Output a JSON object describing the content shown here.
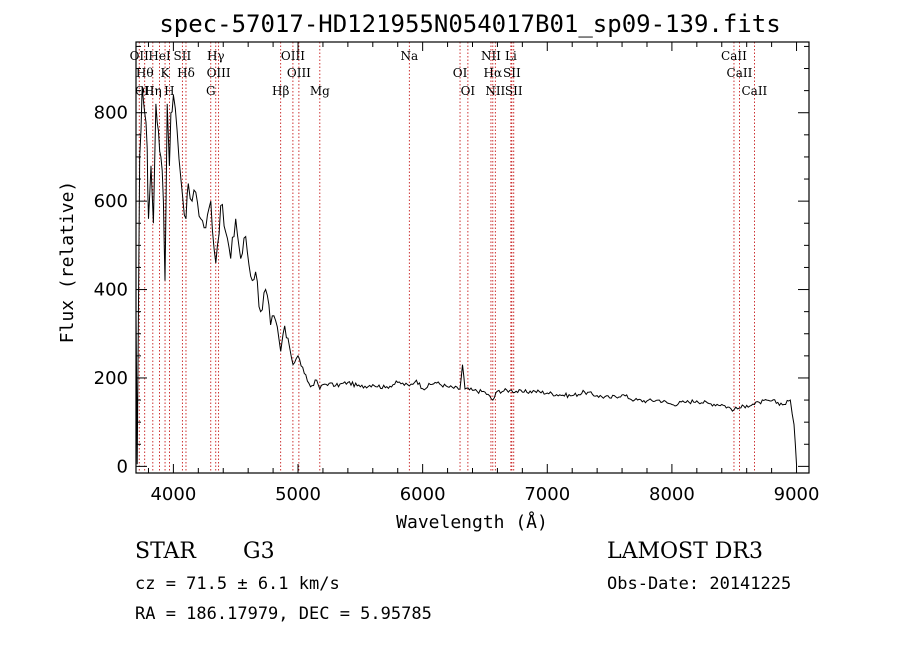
{
  "title": "spec-57017-HD121955N054017B01_sp09-139.fits",
  "chart_data": {
    "type": "line",
    "xlabel": "Wavelength (Å)",
    "ylabel": "Flux (relative)",
    "xlim": [
      3700,
      9100
    ],
    "ylim": [
      -15,
      960
    ],
    "x_ticks": [
      4000,
      5000,
      6000,
      7000,
      8000,
      9000
    ],
    "y_ticks": [
      0,
      200,
      400,
      600,
      800
    ],
    "grid": false,
    "series": [
      {
        "x": [
          3700,
          3710,
          3730,
          3750,
          3770,
          3790,
          3800,
          3820,
          3840,
          3860,
          3880,
          3900,
          3920,
          3933,
          3950,
          3968,
          3980,
          4000,
          4030,
          4060,
          4101,
          4120,
          4150,
          4180,
          4220,
          4260,
          4300,
          4340,
          4380,
          4420,
          4460,
          4500,
          4540,
          4580,
          4620,
          4660,
          4700,
          4740,
          4780,
          4820,
          4861,
          4880,
          4920,
          4960,
          5000,
          5050,
          5100,
          5150,
          5175,
          5200,
          5250,
          5300,
          5400,
          5500,
          5600,
          5700,
          5800,
          5893,
          5950,
          6000,
          6100,
          6200,
          6300,
          6320,
          6340,
          6400,
          6500,
          6563,
          6600,
          6700,
          6800,
          6900,
          7000,
          7100,
          7200,
          7300,
          7400,
          7500,
          7600,
          7700,
          7800,
          7900,
          8000,
          8100,
          8200,
          8300,
          8400,
          8498,
          8542,
          8600,
          8662,
          8700,
          8800,
          8900,
          8950,
          8980,
          9000
        ],
        "y": [
          340,
          5,
          700,
          860,
          800,
          720,
          560,
          680,
          550,
          820,
          760,
          700,
          600,
          420,
          820,
          680,
          800,
          840,
          760,
          650,
          560,
          640,
          600,
          620,
          560,
          540,
          600,
          460,
          590,
          530,
          470,
          560,
          470,
          520,
          430,
          440,
          350,
          400,
          320,
          330,
          260,
          300,
          290,
          230,
          250,
          210,
          180,
          195,
          175,
          185,
          188,
          182,
          190,
          180,
          185,
          178,
          190,
          182,
          195,
          176,
          190,
          180,
          175,
          230,
          175,
          172,
          168,
          150,
          170,
          172,
          168,
          170,
          166,
          162,
          160,
          168,
          160,
          155,
          162,
          150,
          148,
          150,
          140,
          145,
          148,
          142,
          140,
          128,
          132,
          138,
          140,
          145,
          148,
          140,
          150,
          95,
          5
        ]
      }
    ],
    "lines": [
      {
        "x": 3726,
        "labels": [
          "OII"
        ]
      },
      {
        "x": 3770,
        "labels": [
          "Hθ",
          "OII"
        ]
      },
      {
        "x": 3835,
        "labels": [
          "Hη"
        ]
      },
      {
        "x": 3889,
        "labels": [
          "HeI"
        ]
      },
      {
        "x": 3933,
        "labels": [
          "K"
        ]
      },
      {
        "x": 3968,
        "labels": [
          "H"
        ]
      },
      {
        "x": 4072,
        "labels": [
          "SII"
        ]
      },
      {
        "x": 4101,
        "labels": [
          "Hδ"
        ]
      },
      {
        "x": 4300,
        "labels": [
          "G"
        ]
      },
      {
        "x": 4340,
        "labels": [
          "Hγ"
        ]
      },
      {
        "x": 4363,
        "labels": [
          "OIII"
        ]
      },
      {
        "x": 4861,
        "labels": [
          "Hβ"
        ]
      },
      {
        "x": 4959,
        "labels": [
          "OIII"
        ]
      },
      {
        "x": 5007,
        "labels": [
          "OIII"
        ]
      },
      {
        "x": 5175,
        "labels": [
          "Mg"
        ]
      },
      {
        "x": 5893,
        "labels": [
          "Na"
        ]
      },
      {
        "x": 6300,
        "labels": [
          "OI"
        ]
      },
      {
        "x": 6363,
        "labels": [
          "OI"
        ]
      },
      {
        "x": 6548,
        "labels": [
          "NII"
        ]
      },
      {
        "x": 6563,
        "labels": [
          "Hα"
        ]
      },
      {
        "x": 6583,
        "labels": [
          "NII"
        ]
      },
      {
        "x": 6708,
        "labels": [
          "Li"
        ]
      },
      {
        "x": 6716,
        "labels": [
          "SII"
        ]
      },
      {
        "x": 6731,
        "labels": [
          "SII"
        ]
      },
      {
        "x": 8498,
        "labels": [
          "CaII"
        ]
      },
      {
        "x": 8542,
        "labels": [
          "CaII"
        ]
      },
      {
        "x": 8662,
        "labels": [
          "CaII"
        ]
      }
    ]
  },
  "info": {
    "class_label": "STAR",
    "subclass": "G3",
    "survey": "LAMOST DR3",
    "cz": "cz = 71.5 ± 6.1 km/s",
    "obs_date": "Obs-Date: 20141225",
    "radec": "RA = 186.17979, DEC =    5.95785"
  }
}
